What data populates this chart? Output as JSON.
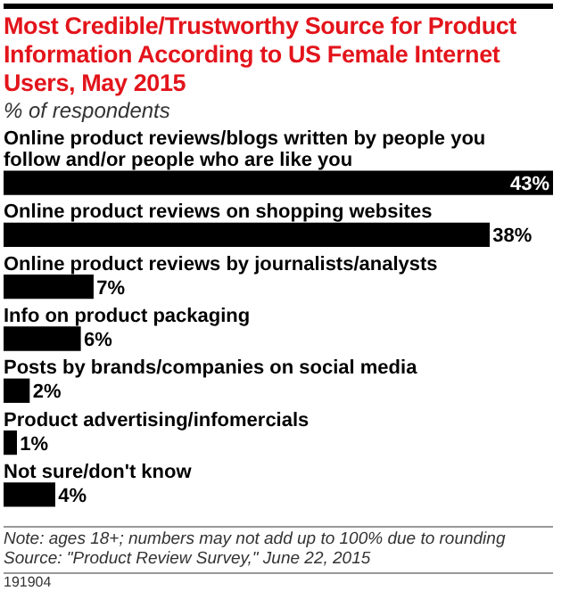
{
  "chart_data": {
    "type": "bar",
    "orientation": "horizontal",
    "title": "Most Credible/Trustworthy Source for Product Information According to US Female Internet Users, May 2015",
    "subtitle": "% of respondents",
    "categories": [
      "Online product reviews/blogs written by people you follow and/or people who are like you",
      "Online product reviews on shopping websites",
      "Online product reviews by journalists/analysts",
      "Info on product packaging",
      "Posts by brands/companies on social media",
      "Product advertising/infomercials",
      "Not sure/don't know"
    ],
    "values": [
      43,
      38,
      7,
      6,
      2,
      1,
      4
    ],
    "value_labels": [
      "43%",
      "38%",
      "7%",
      "6%",
      "2%",
      "1%",
      "4%"
    ],
    "color": "#000000",
    "legend": false,
    "annotations": [
      "Note: ages 18+; numbers may not add up to 100% due to rounding",
      "Source: \"Product Review Survey,\" June 22, 2015",
      "191904"
    ]
  }
}
